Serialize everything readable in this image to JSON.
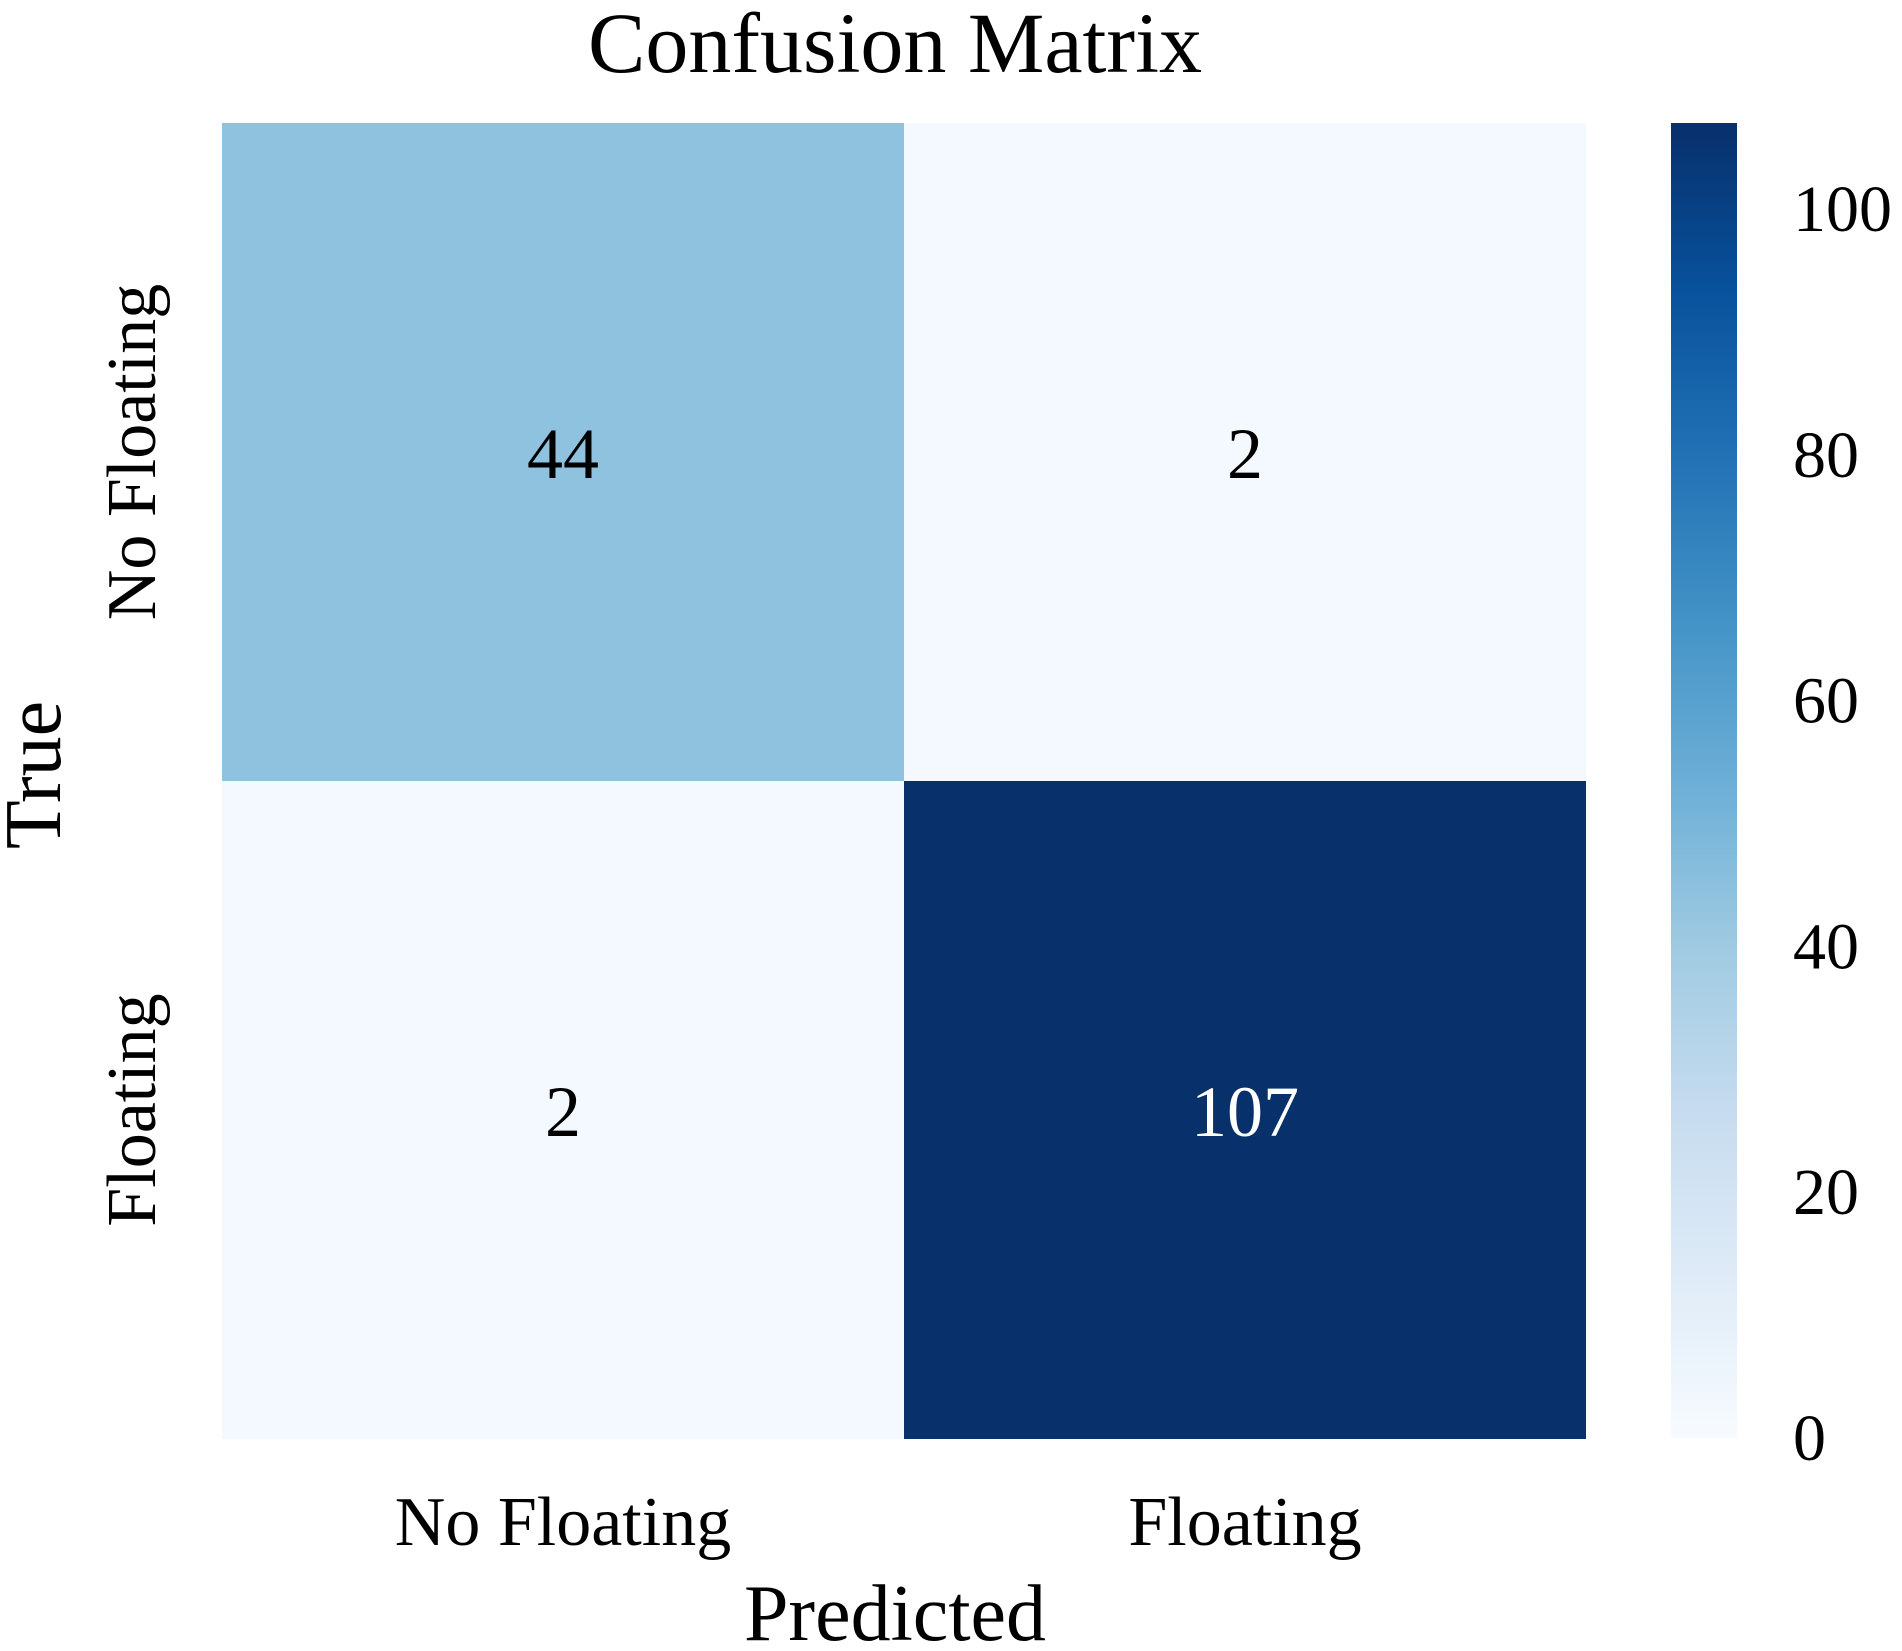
{
  "chart_data": {
    "type": "heatmap",
    "title": "Confusion Matrix",
    "xlabel": "Predicted",
    "ylabel": "True",
    "x_categories": [
      "No Floating",
      "Floating"
    ],
    "y_categories": [
      "No Floating",
      "Floating"
    ],
    "values": [
      [
        44,
        2
      ],
      [
        2,
        107
      ]
    ],
    "colorscale": "Blues",
    "color_range": [
      0,
      107
    ],
    "colorbar_ticks": [
      0,
      20,
      40,
      60,
      80,
      100
    ],
    "colorbar_stops": [
      "#f7fbff",
      "#deebf7",
      "#c6dbef",
      "#9ecae1",
      "#6baed6",
      "#4292c6",
      "#2171b5",
      "#08519c",
      "#08306b"
    ],
    "text_colors": {
      "light": "#ffffff",
      "dark": "#000000"
    }
  }
}
